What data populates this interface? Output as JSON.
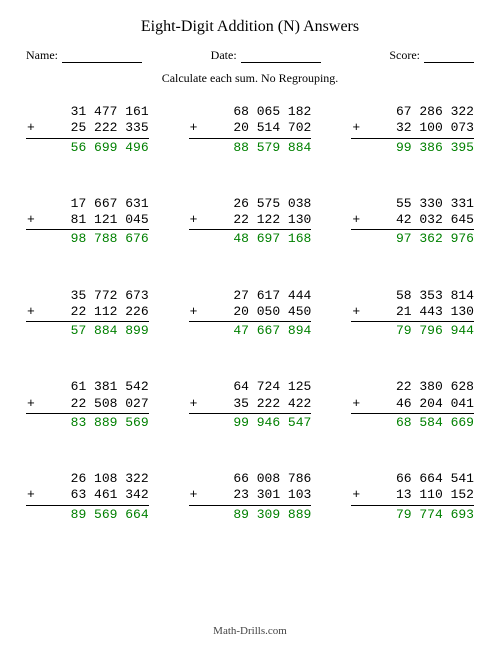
{
  "title": "Eight-Digit Addition (N) Answers",
  "header": {
    "name_label": "Name:",
    "date_label": "Date:",
    "score_label": "Score:",
    "name_line_width": 80,
    "date_line_width": 80,
    "score_line_width": 50
  },
  "instruction": "Calculate each sum.  No Regrouping.",
  "operator": "+",
  "problems": [
    {
      "a": "31 477 161",
      "b": "25 222 335",
      "sum": "56 699 496"
    },
    {
      "a": "68 065 182",
      "b": "20 514 702",
      "sum": "88 579 884"
    },
    {
      "a": "67 286 322",
      "b": "32 100 073",
      "sum": "99 386 395"
    },
    {
      "a": "17 667 631",
      "b": "81 121 045",
      "sum": "98 788 676"
    },
    {
      "a": "26 575 038",
      "b": "22 122 130",
      "sum": "48 697 168"
    },
    {
      "a": "55 330 331",
      "b": "42 032 645",
      "sum": "97 362 976"
    },
    {
      "a": "35 772 673",
      "b": "22 112 226",
      "sum": "57 884 899"
    },
    {
      "a": "27 617 444",
      "b": "20 050 450",
      "sum": "47 667 894"
    },
    {
      "a": "58 353 814",
      "b": "21 443 130",
      "sum": "79 796 944"
    },
    {
      "a": "61 381 542",
      "b": "22 508 027",
      "sum": "83 889 569"
    },
    {
      "a": "64 724 125",
      "b": "35 222 422",
      "sum": "99 946 547"
    },
    {
      "a": "22 380 628",
      "b": "46 204 041",
      "sum": "68 584 669"
    },
    {
      "a": "26 108 322",
      "b": "63 461 342",
      "sum": "89 569 664"
    },
    {
      "a": "66 008 786",
      "b": "23 301 103",
      "sum": "89 309 889"
    },
    {
      "a": "66 664 541",
      "b": "13 110 152",
      "sum": "79 774 693"
    }
  ],
  "footer": "Math-Drills.com",
  "style": {
    "answer_color": "#008000",
    "text_color": "#000000",
    "background_color": "#ffffff"
  }
}
